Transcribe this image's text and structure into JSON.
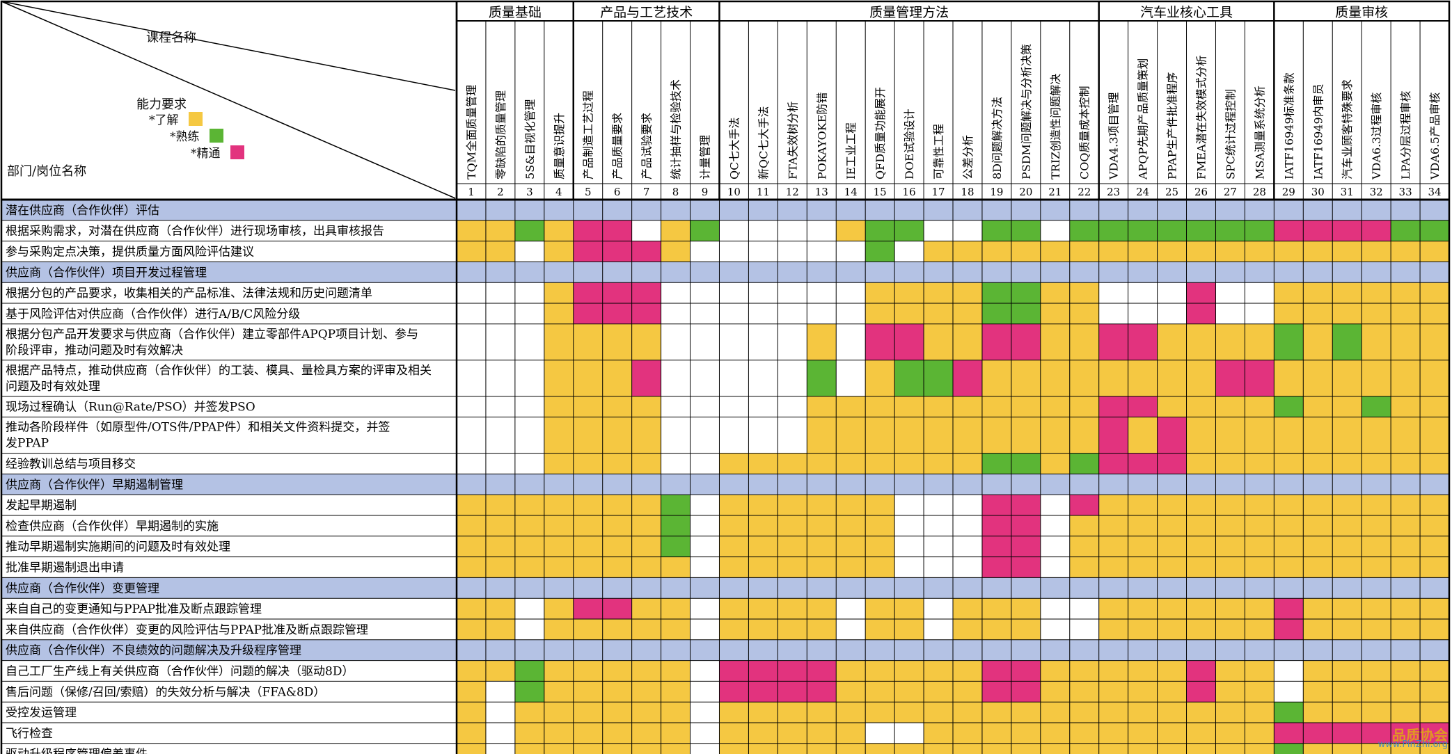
{
  "header": {
    "course_label": "课程名称",
    "capability_label": "能力要求",
    "dept_label": "部门/岗位名称",
    "legend": [
      {
        "label": "*了解",
        "color": "#F5C842"
      },
      {
        "label": "*熟练",
        "color": "#5BB534"
      },
      {
        "label": "*精通",
        "color": "#E2337E"
      }
    ]
  },
  "colors": {
    "Y": "#F5C842",
    "G": "#5BB534",
    "M": "#E2337E",
    "W": "#FFFFFF",
    "section": "#B4C2E4"
  },
  "groups": [
    {
      "name": "质量基础",
      "span": 4
    },
    {
      "name": "产品与工艺技术",
      "span": 5
    },
    {
      "name": "质量管理方法",
      "span": 13
    },
    {
      "name": "汽车业核心工具",
      "span": 6
    },
    {
      "name": "质量审核",
      "span": 6
    }
  ],
  "courses": [
    "TQM全面质量管理",
    "零缺陷的质量管理",
    "5S&目视化管理",
    "质量意识提升",
    "产品制造工艺过程",
    "产品质量要求",
    "产品试验要求",
    "统计抽样与检验技术",
    "计量管理",
    "QC七大手法",
    "新QC七大手法",
    "FTA失效树分析",
    "POKAYOKE防错",
    "IE工业工程",
    "QFD质量功能展开",
    "DOE试验设计",
    "可靠性工程",
    "公差分析",
    "8D问题解决方法",
    "PSDM问题解决与分析决策",
    "TRIZ创造性问题解决",
    "COQ质量成本控制",
    "VDA4.3项目管理",
    "APQP先期产品质量策划",
    "PPAP生产件批准程序",
    "FMEA潜在失效模式分析",
    "SPC统计过程控制",
    "MSA测量系统分析",
    "IATF16949标准条款",
    "IATF16949内审员",
    "汽车业顾客特殊要求",
    "VDA6.3过程审核",
    "LPA分层过程审核",
    "VDA6.5产品审核"
  ],
  "course_numbers": [
    "1",
    "2",
    "3",
    "4",
    "5",
    "6",
    "7",
    "8",
    "9",
    "10",
    "11",
    "12",
    "13",
    "14",
    "15",
    "16",
    "17",
    "18",
    "19",
    "20",
    "21",
    "22",
    "23",
    "24",
    "25",
    "26",
    "27",
    "28",
    "29",
    "30",
    "31",
    "32",
    "33",
    "34"
  ],
  "rows": [
    {
      "type": "section",
      "label": "潜在供应商（合作伙伴）评估"
    },
    {
      "type": "item",
      "label": "根据采购需求，对潜在供应商（合作伙伴）进行现场审核，出具审核报告",
      "cells": "YYGYMMWYGWWWWYGGWWGGWGGGGGGGMMMMGG"
    },
    {
      "type": "item",
      "label": "参与采购定点决策，提供质量方面风险评估建议",
      "cells": "YYWYMMMYWWWWWWGWYYYYYYYYYYYYYYYYYY"
    },
    {
      "type": "section",
      "label": "供应商（合作伙伴）项目开发过程管理"
    },
    {
      "type": "item",
      "label": "根据分包的产品要求，收集相关的产品标准、法律法规和历史问题清单",
      "cells": "WWWYMMMWWWWWWWYYYYGGYYWWWMWWYYYYYY"
    },
    {
      "type": "item",
      "label": "基于风险评估对供应商（合作伙伴）进行A/B/C风险分级",
      "cells": "WWWYMMMWWWWWWWYYYYGGYYWWWMWWYYYYYY"
    },
    {
      "type": "item",
      "label": "根据分包产品开发要求与供应商（合作伙伴）建立零部件APQP项目计划、参与阶段评审，推动问题及时有效解决",
      "cells": "WWWYYYYWWWWWYWMMYYMMYYMMYYYYGYGYYY"
    },
    {
      "type": "item",
      "label": "根据产品特点，推动供应商（合作伙伴）的工装、模具、量检具方案的评审及相关问题及时有效处理",
      "cells": "WWWYYYMWWWWWGWYGGMYYYYYYYYMMYYYYYY"
    },
    {
      "type": "item",
      "label": "现场过程确认（Run@Rate/PSO）并签发PSO",
      "cells": "WWWYYYYWWWWWYYYYYYYYYYMMYYYYGYYGYY"
    },
    {
      "type": "item",
      "label": "推动各阶段样件（如原型件/OTS件/PPAP件）和相关文件资料提交，并签发PPAP",
      "cells": "WWWYYYYWWWWWYYYYYYYYYYMYMYYYYYYYYY"
    },
    {
      "type": "item",
      "label": "经验教训总结与项目移交",
      "cells": "WWWYYYYWWYYYYYYYYYGGYGMMMYYYYYYYYY"
    },
    {
      "type": "section",
      "label": "供应商（合作伙伴）早期遏制管理"
    },
    {
      "type": "item",
      "label": "发起早期遏制",
      "cells": "YYYYYYYGWYYYYYYWWWMMWMYYYYYYYYYYYY"
    },
    {
      "type": "item",
      "label": "检查供应商（合作伙伴）早期遏制的实施",
      "cells": "YYYYYYYGWYYYYYYWWWMMWYYYYYYYYYYYYY"
    },
    {
      "type": "item",
      "label": "推动早期遏制实施期间的问题及时有效处理",
      "cells": "YYYYYYYGWYYYYYYWWWMMWYYYYYYYYYYYYY"
    },
    {
      "type": "item",
      "label": "批准早期遏制退出申请",
      "cells": "YYYYYYYYWYYYYYYWWWMMWYYYYYYYYYYYYY"
    },
    {
      "type": "section",
      "label": "供应商（合作伙伴）变更管理"
    },
    {
      "type": "item",
      "label": "来自自己的变更通知与PPAP批准及断点跟踪管理",
      "cells": "YYWYMMYYWYYYYWYYWYYYWWYYYYYYMYYYYY"
    },
    {
      "type": "item",
      "label": "来自供应商（合作伙伴）变更的风险评估与PPAP批准及断点跟踪管理",
      "cells": "YYWYYYYYWYYYYWYYWYYYWWYYYYYYMYYYYY"
    },
    {
      "type": "section",
      "label": "供应商（合作伙伴）不良绩效的问题解决及升级程序管理"
    },
    {
      "type": "item",
      "label": "自己工厂生产线上有关供应商（合作伙伴）问题的解决（驱动8D）",
      "cells": "YYGYYYYYWMMMMYYYYYMMYYYYYMYYWYYYYY"
    },
    {
      "type": "item",
      "label": "售后问题（保修/召回/索赔）的失效分析与解决（FFA&8D）",
      "cells": "YWGYYYYYWMMMMYYYYYMMYYYYYMYYWYYYYY"
    },
    {
      "type": "item",
      "label": "受控发运管理",
      "cells": "YWYYYYYYWYYYYYYYYYYYYYYYYYYYGYYYYY"
    },
    {
      "type": "item",
      "label": "飞行检查",
      "cells": "YWYYYYYYWYYYYYWWYYYYYYYYYYYYMMMMMM"
    },
    {
      "type": "item",
      "label": "驱动升级程序管理偏差事件",
      "cells": "YWYYYYYYWYYYYYYYYYYYYYYYYYYYGYYYYY"
    }
  ],
  "watermark": {
    "line1": "品质协会",
    "line2": "www.PinZhi.org"
  }
}
